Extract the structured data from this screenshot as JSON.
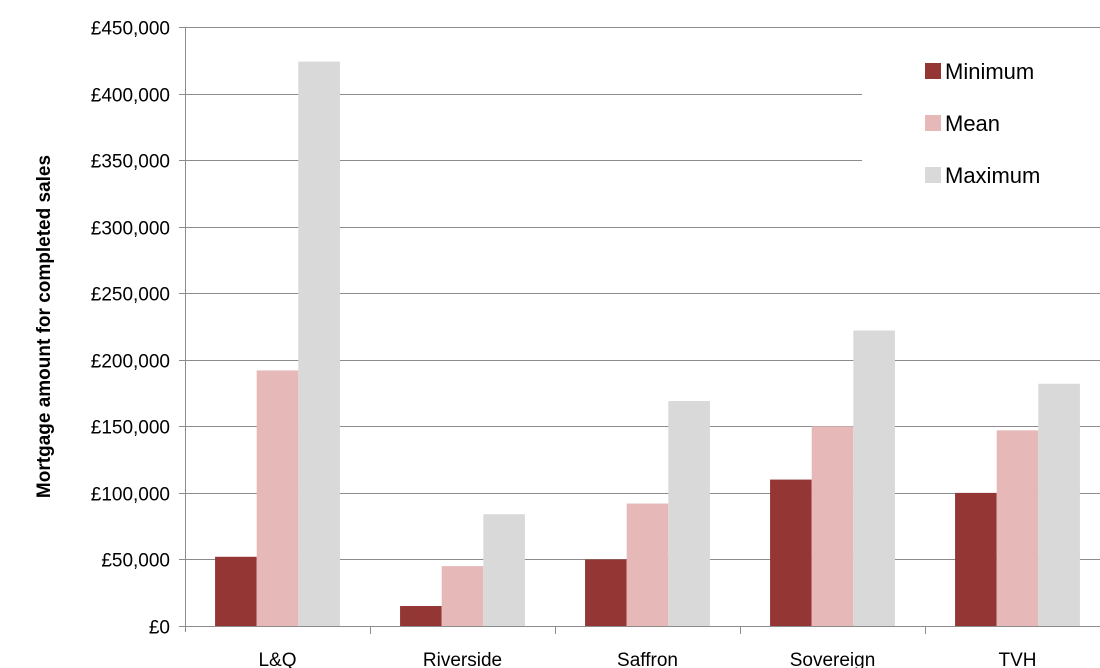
{
  "chart_data": {
    "type": "bar",
    "title": "",
    "xlabel": "",
    "ylabel": "Mortgage amount for completed sales",
    "categories": [
      "L&Q",
      "Riverside",
      "Saffron",
      "Sovereign",
      "TVH"
    ],
    "series": [
      {
        "name": "Minimum",
        "color": "#943634",
        "values": [
          52000,
          15000,
          50000,
          110000,
          100000
        ]
      },
      {
        "name": "Mean",
        "color": "#e6b9b8",
        "values": [
          192000,
          45000,
          92000,
          150000,
          147000
        ]
      },
      {
        "name": "Maximum",
        "color": "#d9d9d9",
        "values": [
          424000,
          84000,
          169000,
          222000,
          182000
        ]
      }
    ],
    "ylim": [
      0,
      450000
    ],
    "yticks": [
      0,
      50000,
      100000,
      150000,
      200000,
      250000,
      300000,
      350000,
      400000,
      450000
    ],
    "ytick_labels": [
      "£0",
      "£50,000",
      "£100,000",
      "£150,000",
      "£200,000",
      "£250,000",
      "£300,000",
      "£350,000",
      "£400,000",
      "£450,000"
    ],
    "grid": true,
    "legend_position": "top-right"
  }
}
